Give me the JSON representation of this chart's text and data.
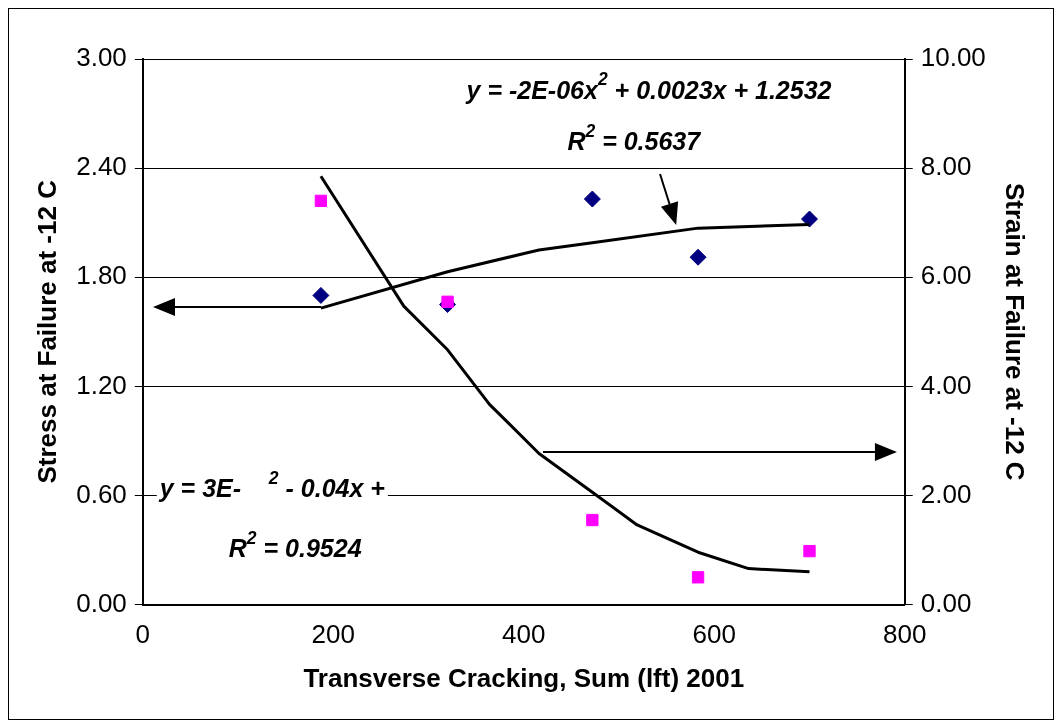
{
  "chart_data": {
    "type": "scatter",
    "xlabel": "Transverse Cracking, Sum (lft) 2001",
    "ylabel": "Stress at Failure at -12 C",
    "y2label": "Strain at Failure at -12 C",
    "xlim": [
      0,
      800
    ],
    "xticks": [
      0,
      200,
      400,
      600,
      800
    ],
    "ylim": [
      0,
      3
    ],
    "yticks": [
      {
        "value": 0,
        "label": "0.00"
      },
      {
        "value": 0.6,
        "label": "0.60"
      },
      {
        "value": 1.2,
        "label": "1.20"
      },
      {
        "value": 1.8,
        "label": "1.80"
      },
      {
        "value": 2.4,
        "label": "2.40"
      },
      {
        "value": 3,
        "label": "3.00"
      }
    ],
    "y2lim": [
      0,
      10
    ],
    "y2ticks": [
      {
        "value": 0,
        "label": "0.00"
      },
      {
        "value": 2,
        "label": "2.00"
      },
      {
        "value": 4,
        "label": "4.00"
      },
      {
        "value": 6,
        "label": "6.00"
      },
      {
        "value": 8,
        "label": "8.00"
      },
      {
        "value": 10,
        "label": "10.00"
      }
    ],
    "grid": "y",
    "legend": false,
    "series": [
      {
        "color": "#000080",
        "marker": "diamond",
        "x": [
          187,
          320,
          472,
          583,
          700
        ],
        "values": [
          1.7,
          1.65,
          2.23,
          1.91,
          2.12
        ]
      },
      {
        "color": "#ff00ff",
        "marker": "square",
        "axis": "y2",
        "x": [
          187,
          320,
          472,
          583,
          700
        ],
        "values": [
          7.4,
          5.55,
          1.55,
          0.5,
          0.98
        ]
      },
      {
        "type": "line",
        "color": "#000000",
        "marker": "none",
        "x": [
          187,
          320,
          416,
          472,
          583,
          700
        ],
        "values": [
          1.63,
          1.83,
          1.95,
          1.99,
          2.07,
          2.09
        ]
      },
      {
        "type": "line",
        "color": "#000000",
        "marker": "none",
        "axis": "y2",
        "x": [
          187,
          274,
          320,
          364,
          416,
          472,
          519,
          583,
          636,
          700
        ],
        "values": [
          7.85,
          5.47,
          4.67,
          3.67,
          2.77,
          2.06,
          1.46,
          0.96,
          0.66,
          0.6
        ]
      }
    ],
    "annotations": [
      "y = -2E-06x$^{2}$ + 0.0023x + 1.2532",
      "R$^{2}$ = 0.5637",
      "y = 3E-    $^{2}$ - 0.04x +",
      "R$^{2}$ = 0.9524"
    ]
  }
}
